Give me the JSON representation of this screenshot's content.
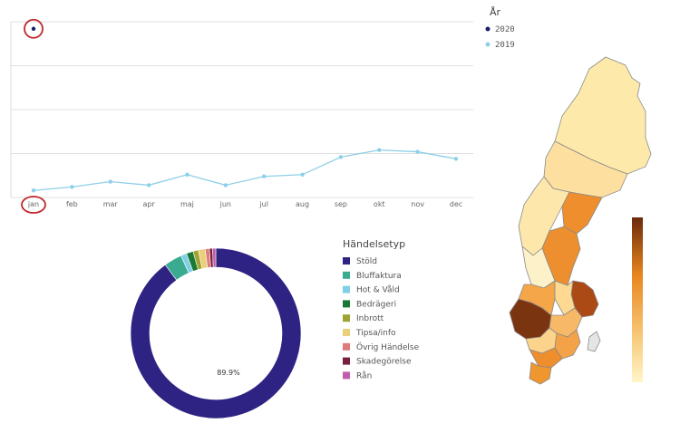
{
  "chart_data": [
    {
      "type": "line",
      "categories": [
        "jan",
        "feb",
        "mar",
        "apr",
        "maj",
        "jun",
        "jul",
        "aug",
        "sep",
        "okt",
        "nov",
        "dec"
      ],
      "series": [
        {
          "name": "2020",
          "color": "#1a1f6b",
          "values": [
            96,
            null,
            null,
            null,
            null,
            null,
            null,
            null,
            null,
            null,
            null,
            null
          ]
        },
        {
          "name": "2019",
          "color": "#8ecfe8",
          "values": [
            4,
            6,
            9,
            7,
            13,
            7,
            12,
            13,
            23,
            27,
            26,
            22
          ]
        }
      ],
      "ylim": [
        0,
        100
      ],
      "grid": true,
      "legend": {
        "title": "År",
        "position": "top-right"
      },
      "highlight": {
        "circled": [
          "jan",
          "2020-jan-point"
        ],
        "color": "#c0282d"
      }
    },
    {
      "type": "pie",
      "donut": true,
      "legend": {
        "title": "Händelsetyp",
        "position": "right"
      },
      "slices": [
        {
          "label": "Stöld",
          "value": 89.9,
          "color": "#2e2383",
          "show_label": "89.9%"
        },
        {
          "label": "Bluffaktura",
          "value": 3.4,
          "color": "#3aaa91"
        },
        {
          "label": "Hot & Våld",
          "value": 1.1,
          "color": "#7fd0e6"
        },
        {
          "label": "Bedrägeri",
          "value": 1.3,
          "color": "#1a7a35"
        },
        {
          "label": "Inbrott",
          "value": 1.0,
          "color": "#a0a330"
        },
        {
          "label": "Tipsa/info",
          "value": 1.3,
          "color": "#ead07a"
        },
        {
          "label": "Övrig Händelse",
          "value": 0.8,
          "color": "#e07b7b"
        },
        {
          "label": "Skadegörelse",
          "value": 0.6,
          "color": "#7a1f3d"
        },
        {
          "label": "Rån",
          "value": 0.6,
          "color": "#c05ca8"
        }
      ]
    },
    {
      "type": "heatmap",
      "subtype": "choropleth-map",
      "region": "Sweden",
      "color_scale": {
        "low": "#fff5c8",
        "high": "#6b2a0c",
        "orientation": "vertical"
      }
    }
  ]
}
